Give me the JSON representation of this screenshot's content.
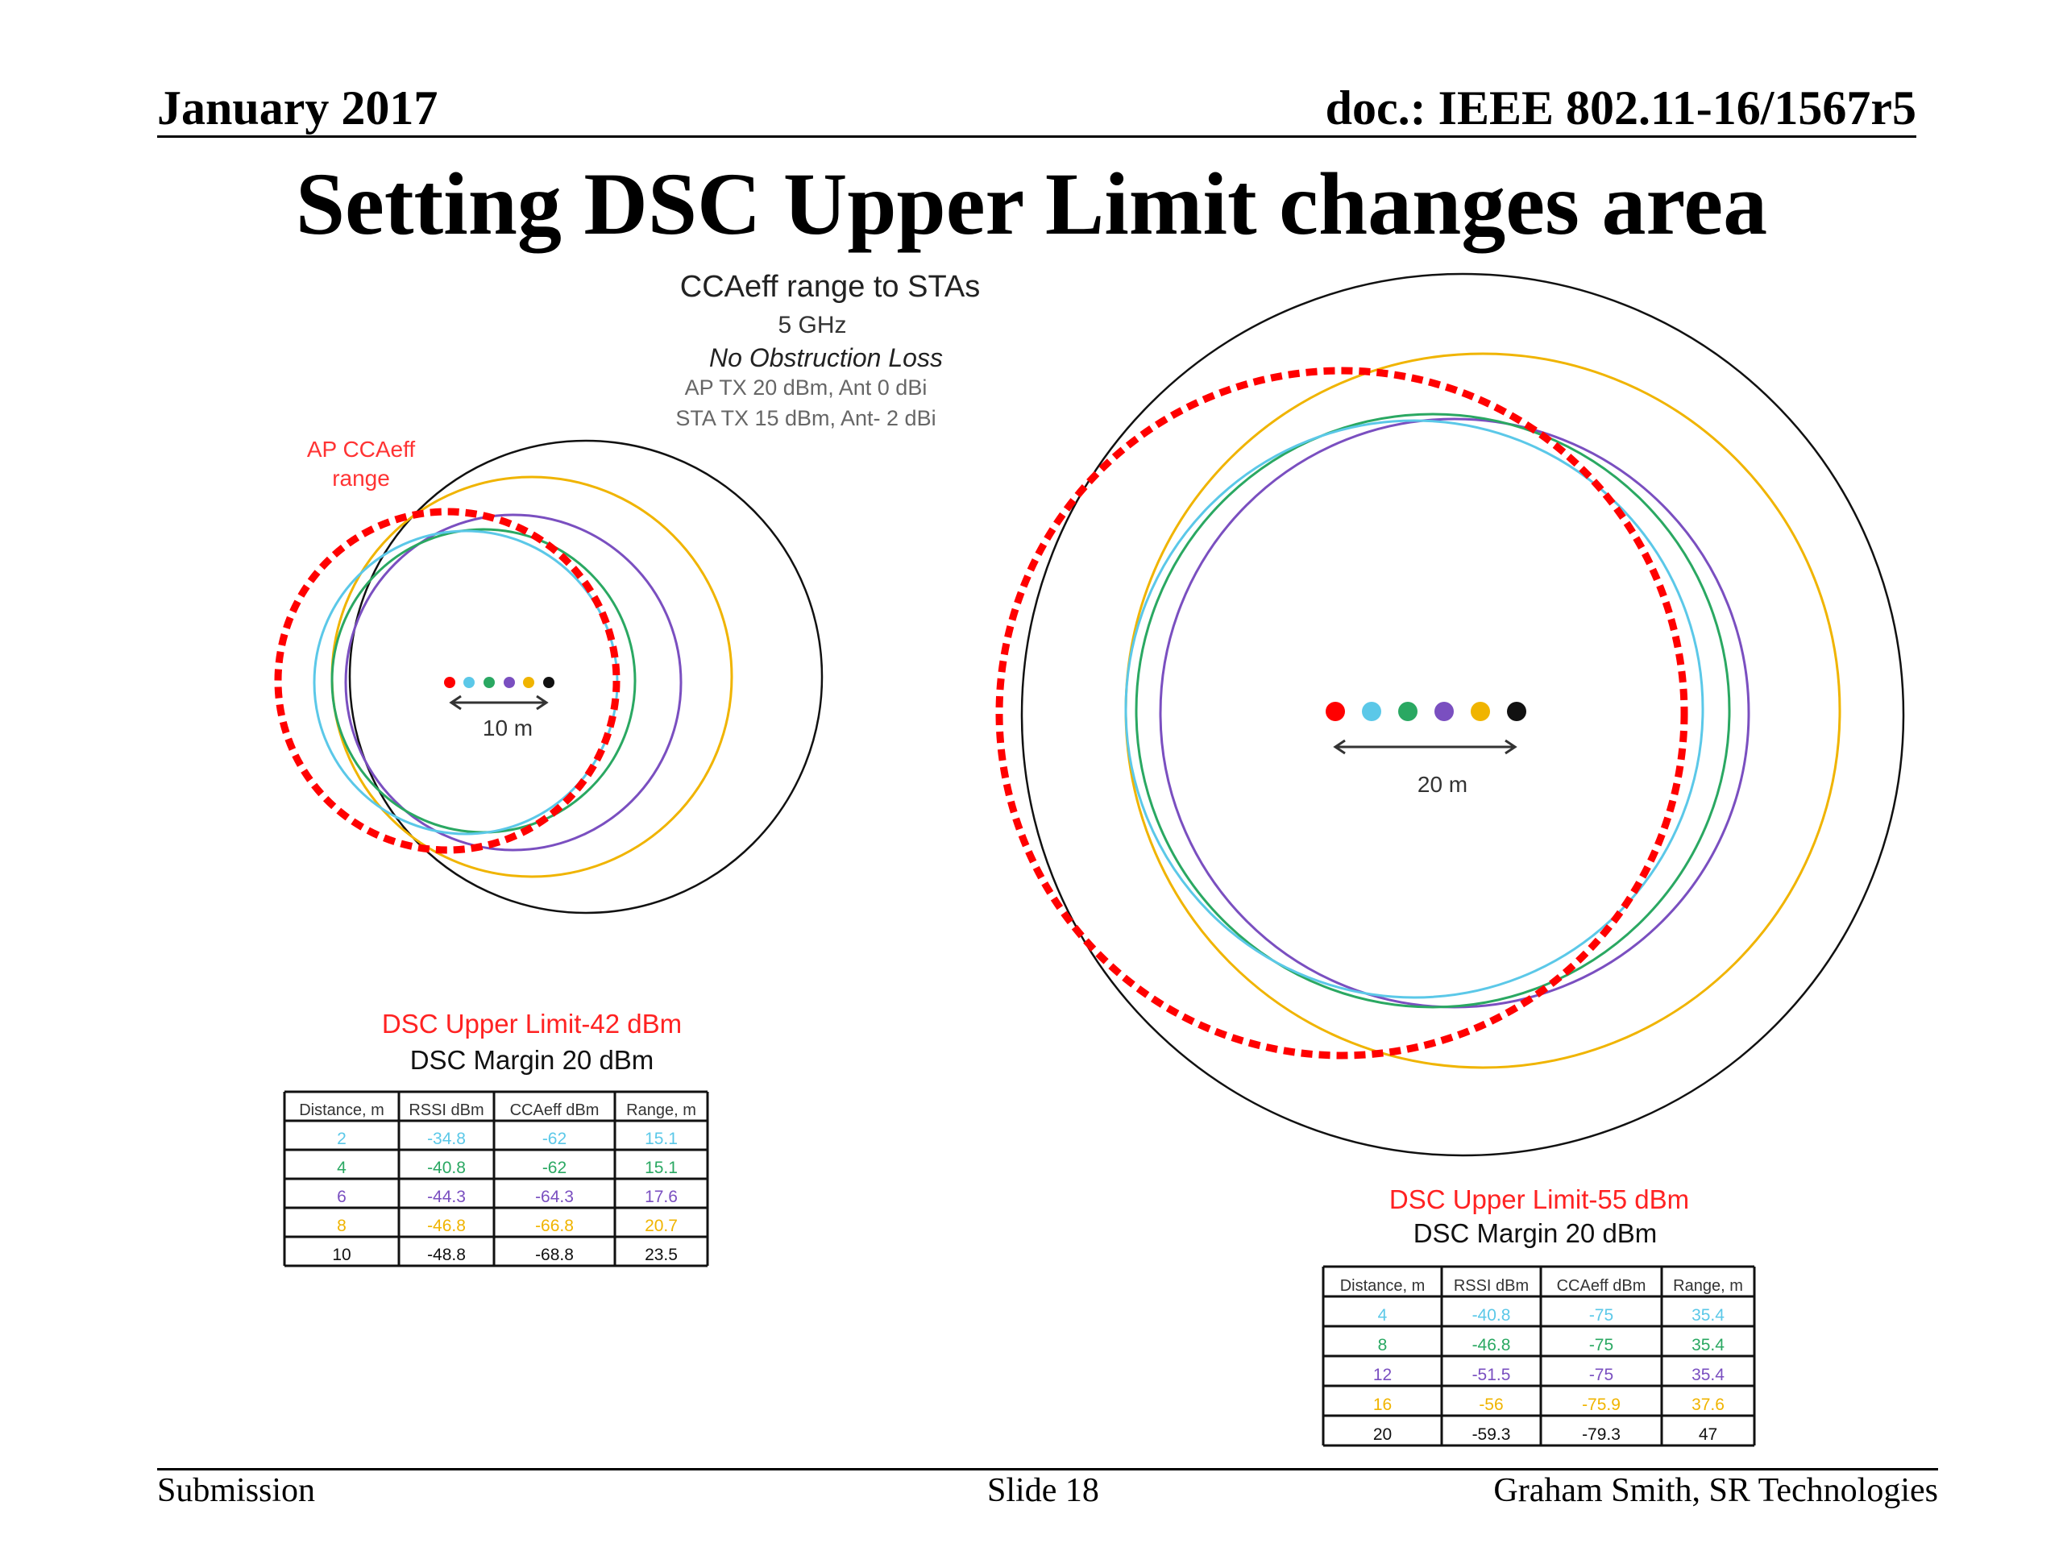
{
  "header": {
    "date": "January 2017",
    "doc_id": "doc.: IEEE 802.11-16/1567r5"
  },
  "title": "Setting DSC Upper Limit changes area",
  "diagram_caption": {
    "line1": "CCAeff range to STAs",
    "line2": "5 GHz",
    "line3": "No Obstruction Loss",
    "line4": "AP TX 20 dBm, Ant 0 dBi",
    "line5": "STA TX 15 dBm, Ant- 2 dBi"
  },
  "colors": {
    "ap": "#ff0000",
    "sta_2": "#5bc8e8",
    "sta_4": "#2aa862",
    "sta_6": "#7a4fc0",
    "sta_8": "#f0b400",
    "sta_10": "#111111"
  },
  "left_diagram": {
    "ap_label": [
      "AP CCAeff",
      "range"
    ],
    "scale_label": "10 m",
    "limit_label": "DSC Upper Limit-42 dBm",
    "margin_label": "DSC Margin 20 dBm",
    "table": {
      "headers": [
        "Distance, m",
        "RSSI dBm",
        "CCAeff dBm",
        "Range, m"
      ],
      "rows": [
        [
          "2",
          "-34.8",
          "-62",
          "15.1"
        ],
        [
          "4",
          "-40.8",
          "-62",
          "15.1"
        ],
        [
          "6",
          "-44.3",
          "-64.3",
          "17.6"
        ],
        [
          "8",
          "-46.8",
          "-66.8",
          "20.7"
        ],
        [
          "10",
          "-48.8",
          "-68.8",
          "23.5"
        ]
      ]
    }
  },
  "right_diagram": {
    "scale_label": "20 m",
    "limit_label": "DSC Upper Limit-55 dBm",
    "margin_label": "DSC Margin 20 dBm",
    "table": {
      "headers": [
        "Distance, m",
        "RSSI dBm",
        "CCAeff dBm",
        "Range, m"
      ],
      "rows": [
        [
          "4",
          "-40.8",
          "-75",
          "35.4"
        ],
        [
          "8",
          "-46.8",
          "-75",
          "35.4"
        ],
        [
          "12",
          "-51.5",
          "-75",
          "35.4"
        ],
        [
          "16",
          "-56",
          "-75.9",
          "37.6"
        ],
        [
          "20",
          "-59.3",
          "-79.3",
          "47"
        ]
      ]
    }
  },
  "footer": {
    "left": "Submission",
    "center": "Slide 18",
    "right": "Graham Smith, SR Technologies"
  }
}
